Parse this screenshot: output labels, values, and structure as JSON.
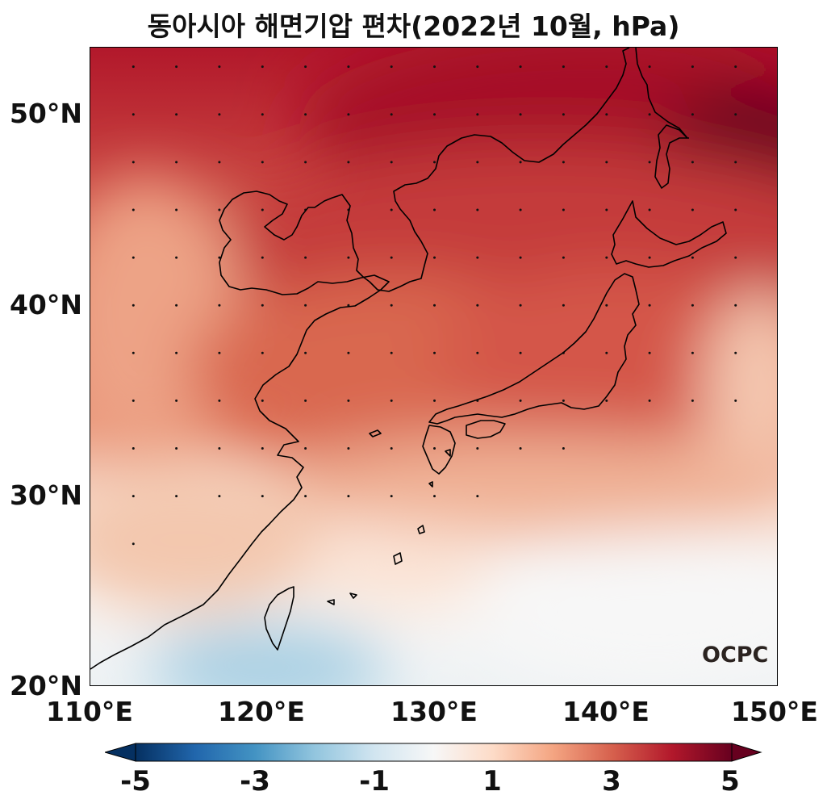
{
  "title": "동아시아 해면기압 편차(2022년 10월, hPa)",
  "map": {
    "lon_range": [
      110,
      150
    ],
    "lat_range": [
      20,
      53.5
    ],
    "lat_ticks": [
      "50°N",
      "40°N",
      "30°N",
      "20°N"
    ],
    "lon_ticks": [
      "110°E",
      "120°E",
      "130°E",
      "140°E",
      "150°E"
    ],
    "field": "sea level pressure anomaly",
    "stippling": true
  },
  "colorbar": {
    "colormap": "RdBu_r",
    "range": [
      -5,
      5
    ],
    "ticks": [
      "-5",
      "-3",
      "-1",
      "1",
      "3",
      "5"
    ],
    "extend": "both"
  },
  "logo": "OCPC",
  "colors": {
    "neg_max": "#053061",
    "neutral": "#f7f7f7",
    "pos_max": "#67001f"
  }
}
